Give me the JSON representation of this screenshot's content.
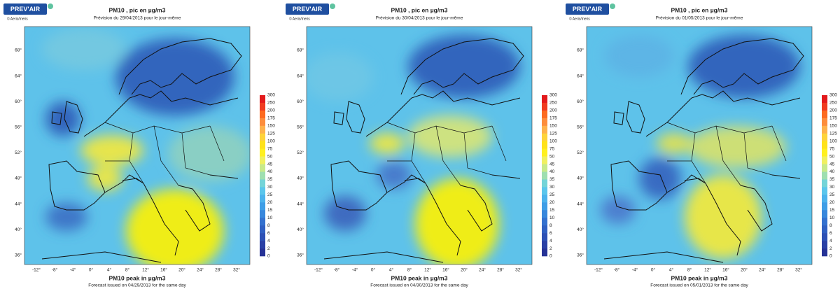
{
  "panels": [
    {
      "logo": "PREV'AIR",
      "credit": "© Aeris/Ineris",
      "title": "PM10 , pic en µg/m3",
      "subtitle": "Prévision du 29/04/2013 pour le jour-même",
      "footer_title": "PM10 peak in µg/m3",
      "footer_subtitle": "Forecast issued on 04/29/2013 for the same day"
    },
    {
      "logo": "PREV'AIR",
      "credit": "© Aeris/Ineris",
      "title": "PM10 , pic en µg/m3",
      "subtitle": "Prévision du 30/04/2013 pour le jour-même",
      "footer_title": "PM10 peak in µg/m3",
      "footer_subtitle": "Forecast issued on 04/30/2013 for the same day"
    },
    {
      "logo": "PREV'AIR",
      "credit": "© Aeris/Ineris",
      "title": "PM10 , pic en µg/m3",
      "subtitle": "Prévision du 01/05/2013 pour le jour-même",
      "footer_title": "PM10 peak in µg/m3",
      "footer_subtitle": "Forecast issued on 05/01/2013 for the same day"
    }
  ],
  "lat_labels": [
    "68°",
    "64°",
    "60°",
    "56°",
    "52°",
    "48°",
    "44°",
    "40°",
    "36°"
  ],
  "lon_labels": [
    "-12°",
    "-8°",
    "-4°",
    "0°",
    "4°",
    "8°",
    "12°",
    "16°",
    "20°",
    "24°",
    "28°",
    "32°"
  ],
  "legend_labels": [
    "300",
    "250",
    "200",
    "175",
    "150",
    "125",
    "100",
    "75",
    "50",
    "45",
    "40",
    "35",
    "30",
    "25",
    "20",
    "15",
    "10",
    "8",
    "6",
    "4",
    "2",
    "0"
  ]
}
